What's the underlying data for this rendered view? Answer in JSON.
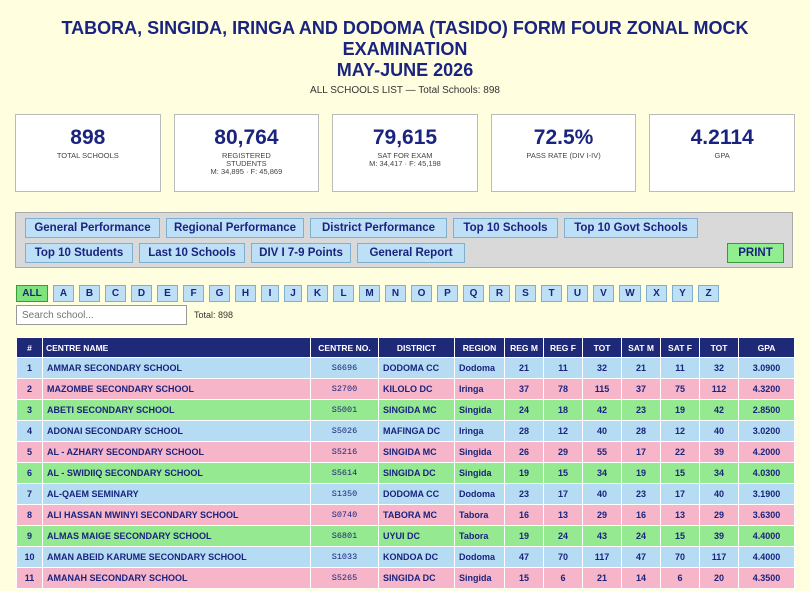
{
  "header": {
    "title_line1": "TABORA, SINGIDA, IRINGA AND DODOMA (TASIDO) FORM FOUR ZONAL MOCK",
    "title_line2": "EXAMINATION",
    "title_line3": "MAY-JUNE 2026",
    "subtitle": "ALL SCHOOLS LIST — Total Schools: 898"
  },
  "stats": [
    {
      "value": "898",
      "label": "TOTAL SCHOOLS",
      "sub": ""
    },
    {
      "value": "80,764",
      "label": "REGISTERED STUDENTS",
      "sub": "M: 34,895 · F: 45,869"
    },
    {
      "value": "79,615",
      "label": "SAT FOR EXAM",
      "sub": "M: 34,417 · F: 45,198"
    },
    {
      "value": "72.5%",
      "label": "PASS RATE (DIV I-IV)",
      "sub": ""
    },
    {
      "value": "4.2114",
      "label": "GPA",
      "sub": ""
    }
  ],
  "nav": {
    "general_performance": "General Performance",
    "regional_performance": "Regional Performance",
    "district_performance": "District Performance",
    "top10_schools": "Top 10 Schools",
    "top10_govt": "Top 10 Govt Schools",
    "top10_students": "Top 10 Students",
    "last10_schools": "Last 10 Schools",
    "div1_points": "DIV I 7-9 Points",
    "general_report": "General Report",
    "print": "PRINT"
  },
  "alphabet": [
    "ALL",
    "A",
    "B",
    "C",
    "D",
    "E",
    "F",
    "G",
    "H",
    "I",
    "J",
    "K",
    "L",
    "M",
    "N",
    "O",
    "P",
    "Q",
    "R",
    "S",
    "T",
    "U",
    "V",
    "W",
    "X",
    "Y",
    "Z"
  ],
  "search": {
    "placeholder": "Search school...",
    "total": "Total: 898"
  },
  "table": {
    "headers": [
      "#",
      "CENTRE NAME",
      "CENTRE NO.",
      "DISTRICT",
      "REGION",
      "REG M",
      "REG F",
      "TOT",
      "SAT M",
      "SAT F",
      "TOT",
      "GPA"
    ],
    "rows": [
      {
        "n": "1",
        "name": "AMMAR SECONDARY SCHOOL",
        "no": "S6696",
        "district": "DODOMA CC",
        "region": "Dodoma",
        "regm": "21",
        "regf": "11",
        "tot": "32",
        "satm": "21",
        "satf": "11",
        "sattot": "32",
        "gpa": "3.0900",
        "color": "blue"
      },
      {
        "n": "2",
        "name": "MAZOMBE SECONDARY SCHOOL",
        "no": "S2700",
        "district": "KILOLO DC",
        "region": "Iringa",
        "regm": "37",
        "regf": "78",
        "tot": "115",
        "satm": "37",
        "satf": "75",
        "sattot": "112",
        "gpa": "4.3200",
        "color": "pink"
      },
      {
        "n": "3",
        "name": "ABETI SECONDARY SCHOOL",
        "no": "S5001",
        "district": "SINGIDA MC",
        "region": "Singida",
        "regm": "24",
        "regf": "18",
        "tot": "42",
        "satm": "23",
        "satf": "19",
        "sattot": "42",
        "gpa": "2.8500",
        "color": "green"
      },
      {
        "n": "4",
        "name": "ADONAI SECONDARY SCHOOL",
        "no": "S5026",
        "district": "MAFINGA DC",
        "region": "Iringa",
        "regm": "28",
        "regf": "12",
        "tot": "40",
        "satm": "28",
        "satf": "12",
        "sattot": "40",
        "gpa": "3.0200",
        "color": "blue"
      },
      {
        "n": "5",
        "name": "AL - AZHARY SECONDARY SCHOOL",
        "no": "S5216",
        "district": "SINGIDA MC",
        "region": "Singida",
        "regm": "26",
        "regf": "29",
        "tot": "55",
        "satm": "17",
        "satf": "22",
        "sattot": "39",
        "gpa": "4.2000",
        "color": "pink"
      },
      {
        "n": "6",
        "name": "AL - SWIDIIQ SECONDARY SCHOOL",
        "no": "S5614",
        "district": "SINGIDA DC",
        "region": "Singida",
        "regm": "19",
        "regf": "15",
        "tot": "34",
        "satm": "19",
        "satf": "15",
        "sattot": "34",
        "gpa": "4.0300",
        "color": "green"
      },
      {
        "n": "7",
        "name": "AL-QAEM SEMINARY",
        "no": "S1350",
        "district": "DODOMA CC",
        "region": "Dodoma",
        "regm": "23",
        "regf": "17",
        "tot": "40",
        "satm": "23",
        "satf": "17",
        "sattot": "40",
        "gpa": "3.1900",
        "color": "blue"
      },
      {
        "n": "8",
        "name": "ALI HASSAN MWINYI SECONDARY SCHOOL",
        "no": "S0740",
        "district": "TABORA MC",
        "region": "Tabora",
        "regm": "16",
        "regf": "13",
        "tot": "29",
        "satm": "16",
        "satf": "13",
        "sattot": "29",
        "gpa": "3.6300",
        "color": "pink"
      },
      {
        "n": "9",
        "name": "ALMAS MAIGE SECONDARY SCHOOL",
        "no": "S6801",
        "district": "UYUI DC",
        "region": "Tabora",
        "regm": "19",
        "regf": "24",
        "tot": "43",
        "satm": "24",
        "satf": "15",
        "sattot": "39",
        "gpa": "4.4000",
        "color": "green"
      },
      {
        "n": "10",
        "name": "AMAN ABEID KARUME SECONDARY SCHOOL",
        "no": "S1033",
        "district": "KONDOA DC",
        "region": "Dodoma",
        "regm": "47",
        "regf": "70",
        "tot": "117",
        "satm": "47",
        "satf": "70",
        "sattot": "117",
        "gpa": "4.4000",
        "color": "blue"
      },
      {
        "n": "11",
        "name": "AMANAH SECONDARY SCHOOL",
        "no": "S5265",
        "district": "SINGIDA DC",
        "region": "Singida",
        "regm": "15",
        "regf": "6",
        "tot": "21",
        "satm": "14",
        "satf": "6",
        "sattot": "20",
        "gpa": "4.3500",
        "color": "pink"
      }
    ]
  }
}
